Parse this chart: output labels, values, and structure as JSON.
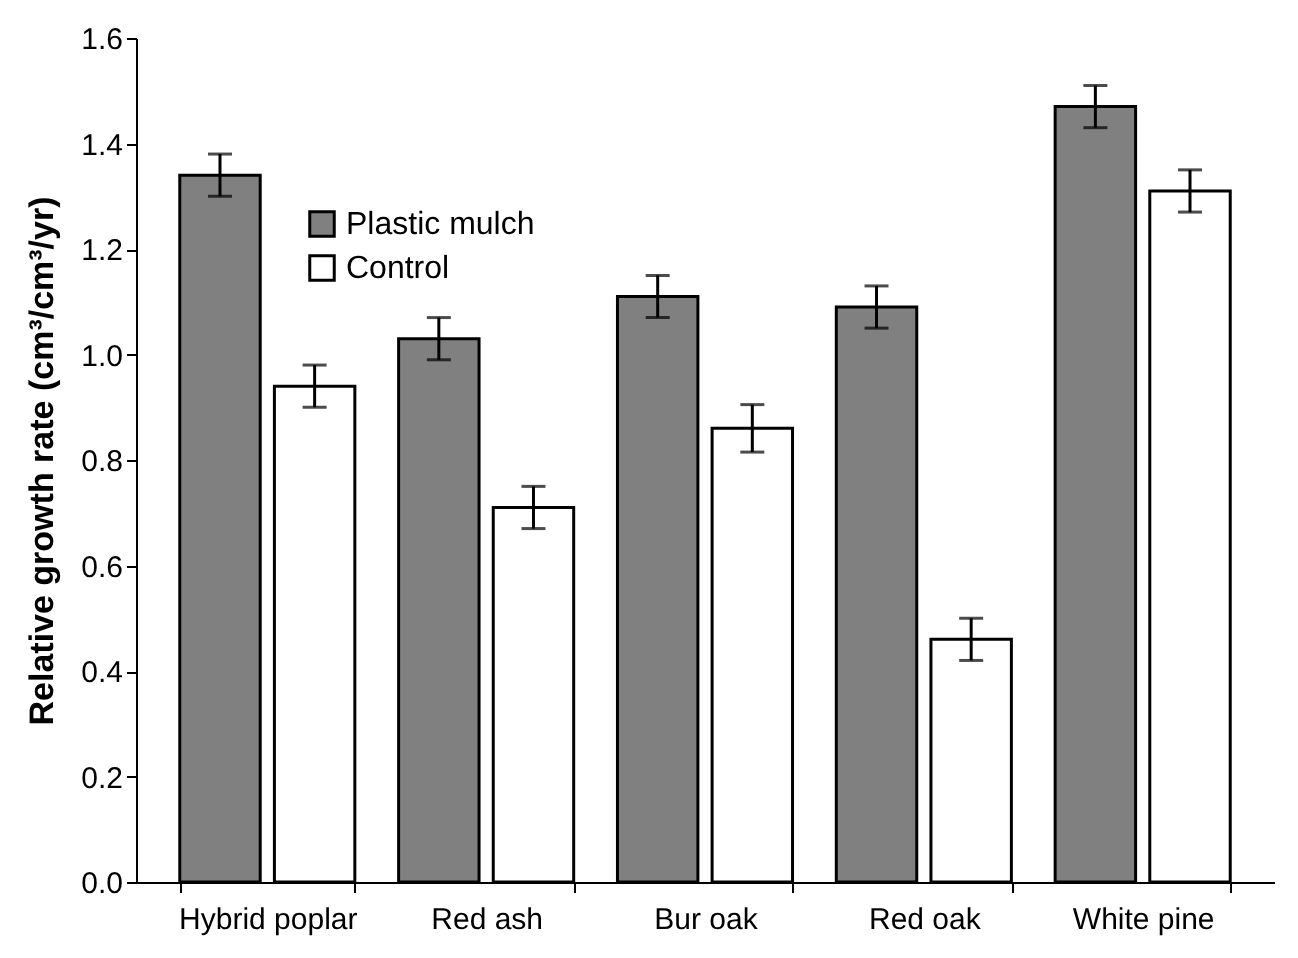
{
  "chart_data": {
    "type": "bar",
    "ylabel": "Relative growth rate (cm³/cm³/yr)",
    "categories": [
      "Hybrid poplar",
      "Red ash",
      "Bur oak",
      "Red oak",
      "White pine"
    ],
    "series": [
      {
        "name": "Plastic mulch",
        "color": "#808080",
        "values": [
          1.34,
          1.03,
          1.11,
          1.09,
          1.47
        ],
        "errors": [
          0.04,
          0.04,
          0.04,
          0.04,
          0.04
        ]
      },
      {
        "name": "Control",
        "color": "#ffffff",
        "values": [
          0.94,
          0.71,
          0.86,
          0.46,
          1.31
        ],
        "errors": [
          0.04,
          0.04,
          0.045,
          0.04,
          0.04
        ]
      }
    ],
    "ylim": [
      0,
      1.6
    ],
    "yticks": [
      {
        "value": 0,
        "label": "0.0"
      },
      {
        "value": 0.2,
        "label": "0.2"
      },
      {
        "value": 0.4,
        "label": "0.4"
      },
      {
        "value": 0.6,
        "label": "0.6"
      },
      {
        "value": 0.8,
        "label": "0.8"
      },
      {
        "value": 1,
        "label": "1.0"
      },
      {
        "value": 1.2,
        "label": "1.2"
      },
      {
        "value": 1.4,
        "label": "1.4"
      },
      {
        "value": 1.6,
        "label": "1.6"
      }
    ],
    "grid": false,
    "legend": "top left"
  }
}
